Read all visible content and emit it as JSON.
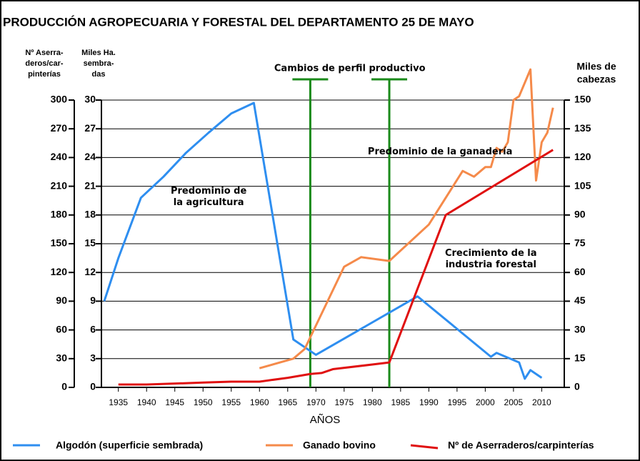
{
  "chart_data": {
    "type": "line",
    "title": "PRODUCCIÓN AGROPECUARIA Y FORESTAL DEL DEPARTAMENTO 25 DE MAYO",
    "ylabel": [
      "Nº Aserra-",
      "deros/car-",
      "pinterías"
    ],
    "y2label": [
      "Miles Ha.",
      "sembra-",
      "das"
    ],
    "y3label": [
      "Miles de",
      "cabezas"
    ],
    "xlabel": "AÑOS",
    "xlim": [
      1932,
      2014
    ],
    "xticks": [
      1935,
      1940,
      1945,
      1950,
      1955,
      1960,
      1965,
      1970,
      1975,
      1980,
      1985,
      1990,
      1995,
      2000,
      2005,
      2010
    ],
    "ylim": [
      0,
      300
    ],
    "yticks": [
      0,
      30,
      60,
      90,
      120,
      150,
      180,
      210,
      240,
      270,
      300
    ],
    "y2lim": [
      0,
      30
    ],
    "y2ticks": [
      0,
      3,
      6,
      9,
      12,
      15,
      18,
      21,
      24,
      27,
      30
    ],
    "y3lim": [
      0,
      150
    ],
    "y3ticks": [
      0,
      15,
      30,
      45,
      60,
      75,
      90,
      105,
      120,
      135,
      150
    ],
    "grid": true,
    "series": [
      {
        "name": "Algodón (superficie sembrada)",
        "color": "#2e8ef0",
        "axis": "y2",
        "x": [
          1932.5,
          1935,
          1939,
          1943,
          1947,
          1951,
          1955,
          1959,
          1966,
          1970,
          1988,
          2001,
          2002,
          2006,
          2007,
          2008,
          2010
        ],
        "values": [
          9,
          13.5,
          19.8,
          22,
          24.5,
          26.6,
          28.6,
          29.7,
          5,
          3.4,
          9.5,
          3.2,
          3.6,
          2.6,
          0.9,
          1.8,
          1.0
        ]
      },
      {
        "name": "Ganado bovino",
        "color": "#f58a4a",
        "axis": "y3",
        "x": [
          1960,
          1966,
          1968,
          1975,
          1978,
          1983,
          1990,
          1996,
          1998,
          2000,
          2001,
          2002,
          2003,
          2004,
          2005,
          2006,
          2008,
          2009,
          2010,
          2011,
          2012
        ],
        "values": [
          10,
          15,
          20,
          63,
          68,
          66,
          85,
          113,
          110,
          115,
          115,
          125,
          123,
          128,
          150,
          152,
          166,
          108,
          128,
          133,
          146
        ]
      },
      {
        "name": "Nº de Aserraderos/carpinterías",
        "color": "#e01010",
        "axis": "y",
        "x": [
          1935,
          1940,
          1945,
          1950,
          1955,
          1960,
          1965,
          1969,
          1971,
          1973,
          1983,
          1993,
          2012
        ],
        "values": [
          3,
          3,
          4,
          5,
          6,
          6,
          10,
          14,
          15,
          19,
          26,
          180,
          248
        ]
      }
    ],
    "vlines": [
      1969,
      1983
    ],
    "annotations": [
      {
        "text": [
          "Cambios de perfil productivo"
        ],
        "x": 1976,
        "y": 300
      },
      {
        "text": [
          "Predominio de",
          "la agricultura"
        ],
        "x": 1951,
        "y": 205
      },
      {
        "text": [
          "Predominio de la ganadería"
        ],
        "x": 1992,
        "y": 246
      },
      {
        "text": [
          "Crecimiento de la",
          "industria forestal"
        ],
        "x": 2001,
        "y": 140
      }
    ]
  }
}
